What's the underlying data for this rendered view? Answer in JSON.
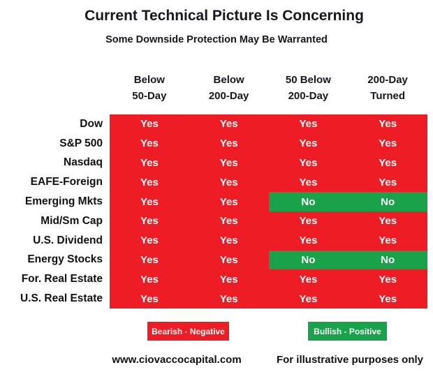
{
  "title": "Current Technical Picture Is Concerning",
  "subtitle": "Some Downside Protection May Be Warranted",
  "chart_data": {
    "type": "table",
    "title": "Current Technical Picture Is Concerning",
    "subtitle": "Some Downside Protection May Be Warranted",
    "columns": [
      "Below 50-Day",
      "Below 200-Day",
      "50 Below 200-Day",
      "200-Day Turned"
    ],
    "rows": [
      "Dow",
      "S&P 500",
      "Nasdaq",
      "EAFE-Foreign",
      "Emerging Mkts",
      "Mid/Sm Cap",
      "U.S. Dividend",
      "Energy Stocks",
      "For. Real Estate",
      "U.S. Real Estate"
    ],
    "values": [
      [
        "Yes",
        "Yes",
        "Yes",
        "Yes"
      ],
      [
        "Yes",
        "Yes",
        "Yes",
        "Yes"
      ],
      [
        "Yes",
        "Yes",
        "Yes",
        "Yes"
      ],
      [
        "Yes",
        "Yes",
        "Yes",
        "Yes"
      ],
      [
        "Yes",
        "Yes",
        "No",
        "No"
      ],
      [
        "Yes",
        "Yes",
        "Yes",
        "Yes"
      ],
      [
        "Yes",
        "Yes",
        "Yes",
        "Yes"
      ],
      [
        "Yes",
        "Yes",
        "No",
        "No"
      ],
      [
        "Yes",
        "Yes",
        "Yes",
        "Yes"
      ],
      [
        "Yes",
        "Yes",
        "Yes",
        "Yes"
      ]
    ],
    "value_colors": {
      "Yes": "#ee1c25",
      "No": "#1aa24b"
    },
    "legend_position": "bottom",
    "grid": false
  },
  "header_cells": [
    {
      "line1": "Below",
      "line2": "50-Day"
    },
    {
      "line1": "Below",
      "line2": "200-Day"
    },
    {
      "line1": "50 Below",
      "line2": "200-Day"
    },
    {
      "line1": "200-Day",
      "line2": "Turned"
    }
  ],
  "legend": [
    {
      "label": "Bearish - Negative",
      "color": "#ee1c25"
    },
    {
      "label": "Bullish - Positive",
      "color": "#1aa24b"
    }
  ],
  "footer": {
    "website": "www.ciovaccocapital.com",
    "disclaimer": "For illustrative purposes only"
  },
  "colors": {
    "bearish_red": "#ee1c25",
    "bullish_green": "#1aa24b",
    "text_dark": "#16161f",
    "cell_text": "#ffffff"
  }
}
